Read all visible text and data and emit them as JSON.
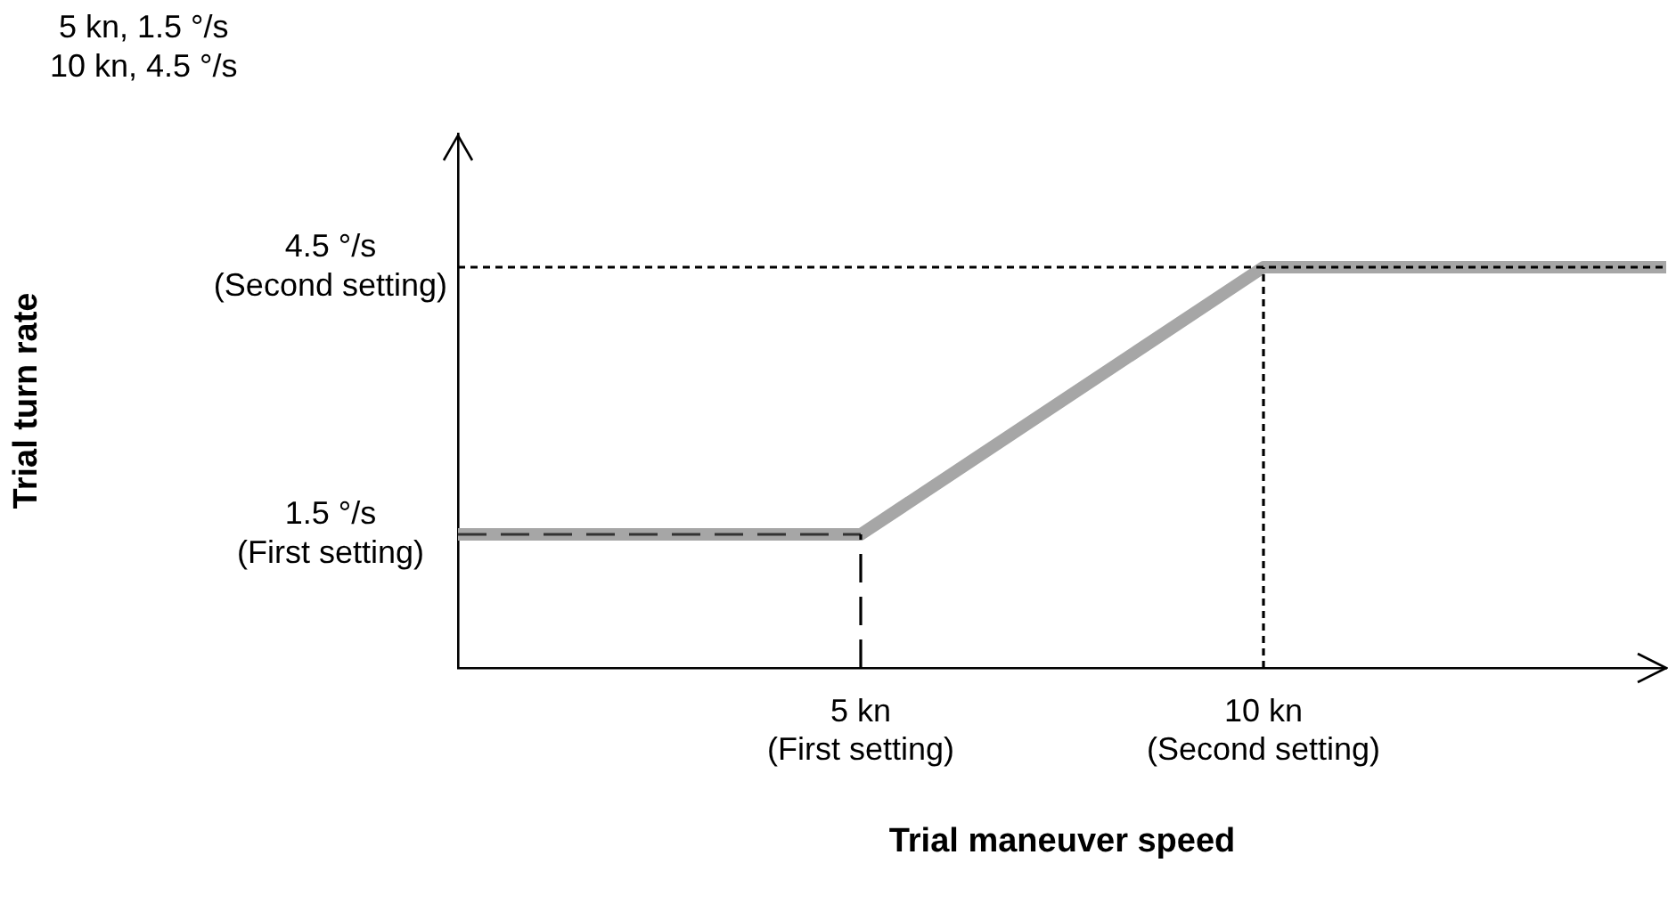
{
  "chart_data": {
    "type": "line",
    "xlabel": "Trial maneuver speed",
    "ylabel": "Trial turn rate",
    "annotations": [
      "5 kn, 1.5 °/s",
      "10 kn, 4.5 °/s"
    ],
    "x": [
      0,
      5,
      10,
      15
    ],
    "series": [
      {
        "color": "#a6a6a6",
        "values": [
          1.5,
          1.5,
          4.5,
          4.5
        ]
      }
    ],
    "xlim": [
      0,
      15
    ],
    "ylim": [
      0,
      6
    ],
    "xticks": [
      {
        "value": 5,
        "label": "5 kn\n(First setting)"
      },
      {
        "value": 10,
        "label": "10 kn\n(Second setting)"
      }
    ],
    "yticks": [
      {
        "value": 1.5,
        "label": "1.5 °/s\n(First setting)"
      },
      {
        "value": 4.5,
        "label": "4.5 °/s\n(Second setting)"
      }
    ],
    "ref_lines": [
      {
        "axis": "y",
        "value": 1.5,
        "color": "#333333",
        "line_style": "dashed"
      },
      {
        "axis": "x",
        "value": 5,
        "color": "#000000",
        "line_style": "dashed"
      },
      {
        "axis": "x",
        "value": 10,
        "color": "#000000",
        "line_style": "dotted"
      },
      {
        "axis": "y",
        "value": 4.5,
        "color": "#000000",
        "line_style": "dotted"
      }
    ],
    "grid": false,
    "legend": false,
    "marker": "none",
    "line_style": "solid"
  }
}
